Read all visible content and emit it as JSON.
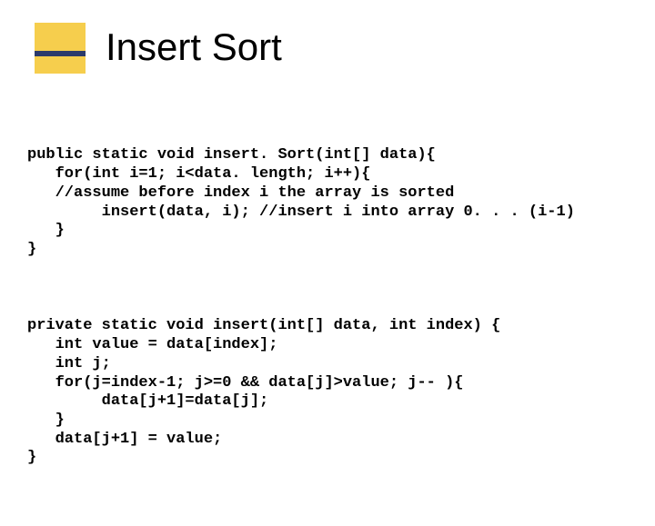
{
  "title": "Insert Sort",
  "accent": {
    "gold": "#f6ce4d",
    "navy": "#2b3a6b"
  },
  "code1": {
    "l1": "public static void insert. Sort(int[] data){",
    "l2": "   for(int i=1; i<data. length; i++){",
    "l3": "   //assume before index i the array is sorted",
    "l4": "        insert(data, i); //insert i into array 0. . . (i-1)",
    "l5": "   }",
    "l6": "}"
  },
  "code2": {
    "l1": "private static void insert(int[] data, int index) {",
    "l2": "   int value = data[index];",
    "l3": "   int j;",
    "l4": "   for(j=index-1; j>=0 && data[j]>value; j-- ){",
    "l5": "        data[j+1]=data[j];",
    "l6": "   }",
    "l7": "   data[j+1] = value;",
    "l8": "}"
  }
}
